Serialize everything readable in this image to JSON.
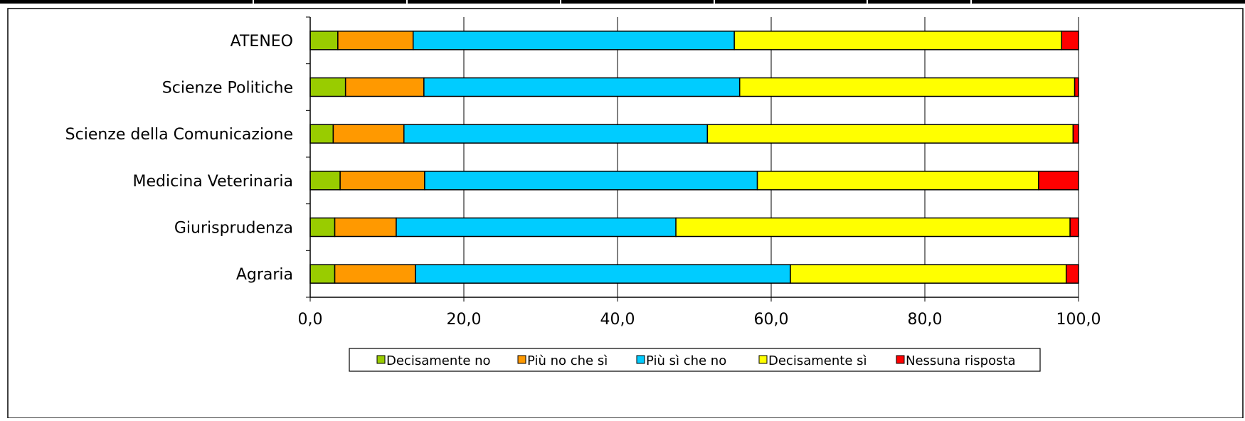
{
  "chart_data": {
    "type": "bar",
    "orientation": "horizontal",
    "stacked": true,
    "title": "",
    "xlabel": "",
    "ylabel": "",
    "categories": [
      "ATENEO",
      "Scienze Politiche",
      "Scienze della Comunicazione",
      "Medicina Veterinaria",
      "Giurisprudenza",
      "Agraria"
    ],
    "series": [
      {
        "name": "Decisamente no",
        "color": "#99cc00",
        "values": [
          3.6,
          4.6,
          3.0,
          3.9,
          3.2,
          3.2
        ]
      },
      {
        "name": "Più no che sì",
        "color": "#ff9900",
        "values": [
          9.8,
          10.2,
          9.2,
          11.0,
          8.0,
          10.5
        ]
      },
      {
        "name": "Più sì che no",
        "color": "#00ccff",
        "values": [
          41.8,
          41.1,
          39.5,
          43.3,
          36.4,
          48.8
        ]
      },
      {
        "name": "Decisamente sì",
        "color": "#ffff00",
        "values": [
          42.6,
          43.6,
          47.6,
          36.6,
          51.3,
          35.9
        ]
      },
      {
        "name": "Nessuna risposta",
        "color": "#ff0000",
        "values": [
          2.2,
          0.5,
          0.7,
          5.2,
          1.1,
          1.6
        ]
      }
    ],
    "xlim": [
      0,
      100
    ],
    "xticks": [
      0,
      20,
      40,
      60,
      80,
      100
    ],
    "xtick_labels": [
      "0,0",
      "20,0",
      "40,0",
      "60,0",
      "80,0",
      "100,0"
    ],
    "grid": "vertical",
    "legend_position": "bottom"
  }
}
